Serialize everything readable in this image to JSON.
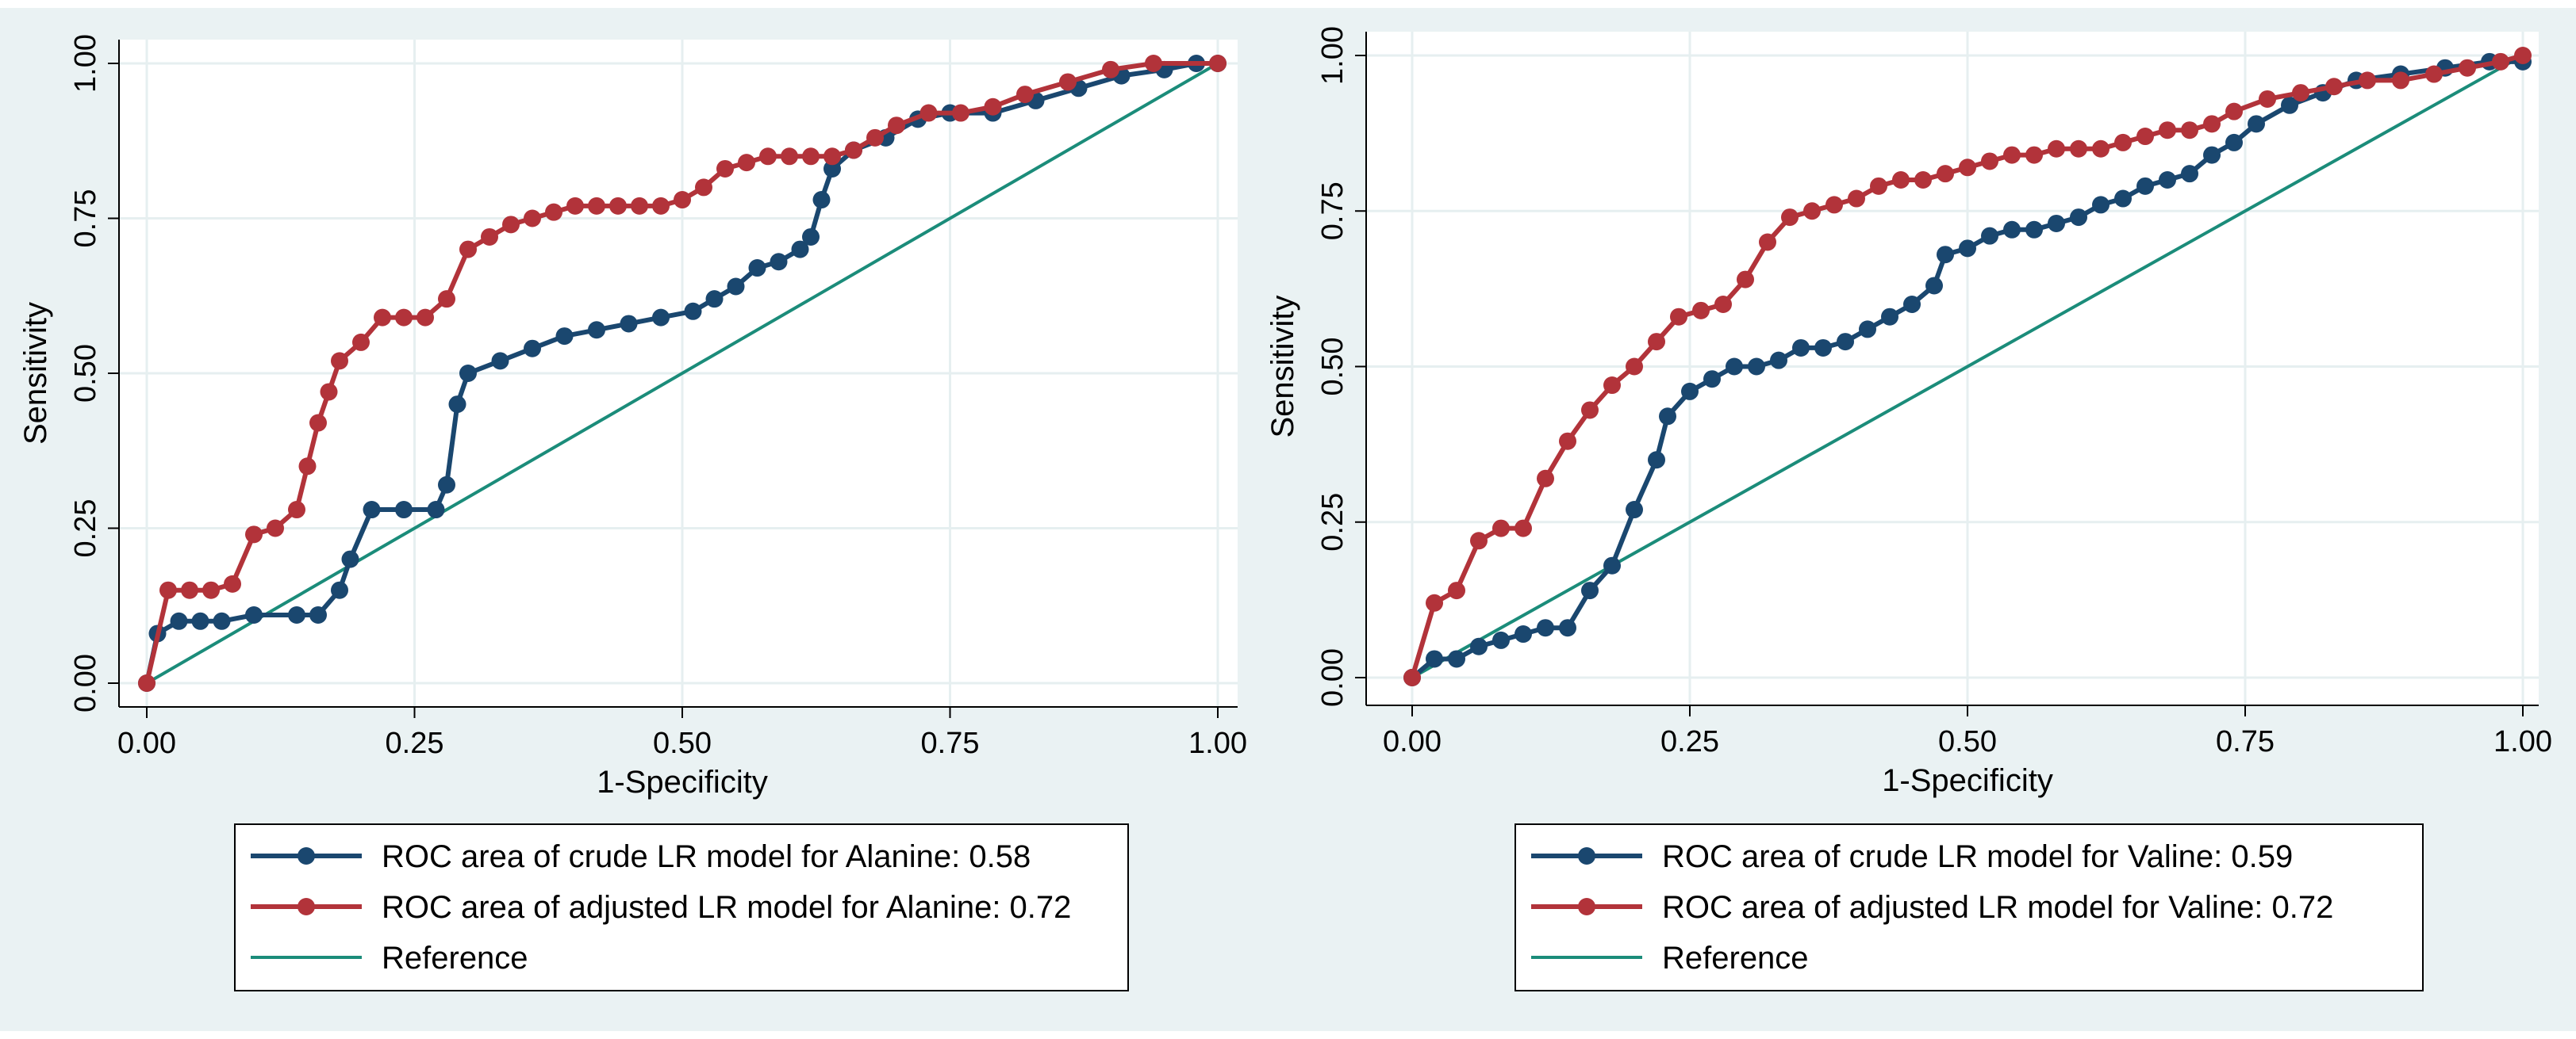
{
  "colors": {
    "panel_bg": "#eaf2f3",
    "plot_bg": "#ffffff",
    "grid": "#e6eff0",
    "crude": "#1a476f",
    "adjusted": "#b2333a",
    "reference": "#1b8c7a",
    "axis": "#000000"
  },
  "chart_data": [
    {
      "type": "line",
      "title": "",
      "xlabel": "1-Specificity",
      "ylabel": "Sensitivity",
      "xlim": [
        0,
        1
      ],
      "ylim": [
        0,
        1
      ],
      "xticks": [
        "0.00",
        "0.25",
        "0.50",
        "0.75",
        "1.00"
      ],
      "yticks": [
        "0.00",
        "0.25",
        "0.50",
        "0.75",
        "1.00"
      ],
      "grid": true,
      "legend_position": "bottom",
      "series": [
        {
          "name": "ROC area of crude LR model for Alanine: 0.58",
          "kind": "crude",
          "x": [
            0,
            0.01,
            0.03,
            0.05,
            0.07,
            0.1,
            0.14,
            0.16,
            0.18,
            0.19,
            0.21,
            0.24,
            0.27,
            0.28,
            0.29,
            0.3,
            0.33,
            0.36,
            0.39,
            0.42,
            0.45,
            0.48,
            0.51,
            0.53,
            0.55,
            0.57,
            0.59,
            0.61,
            0.62,
            0.63,
            0.64,
            0.66,
            0.69,
            0.72,
            0.75,
            0.79,
            0.83,
            0.87,
            0.91,
            0.95,
            0.98,
            1.0
          ],
          "y": [
            0,
            0.08,
            0.1,
            0.1,
            0.1,
            0.11,
            0.11,
            0.11,
            0.15,
            0.2,
            0.28,
            0.28,
            0.28,
            0.32,
            0.45,
            0.5,
            0.52,
            0.54,
            0.56,
            0.57,
            0.58,
            0.59,
            0.6,
            0.62,
            0.64,
            0.67,
            0.68,
            0.7,
            0.72,
            0.78,
            0.83,
            0.86,
            0.88,
            0.91,
            0.92,
            0.92,
            0.94,
            0.96,
            0.98,
            0.99,
            1.0,
            1.0
          ]
        },
        {
          "name": "ROC area of adjusted LR model for Alanine: 0.72",
          "kind": "adjusted",
          "x": [
            0,
            0.02,
            0.04,
            0.06,
            0.08,
            0.1,
            0.12,
            0.14,
            0.15,
            0.16,
            0.17,
            0.18,
            0.2,
            0.22,
            0.24,
            0.26,
            0.28,
            0.3,
            0.32,
            0.34,
            0.36,
            0.38,
            0.4,
            0.42,
            0.44,
            0.46,
            0.48,
            0.5,
            0.52,
            0.54,
            0.56,
            0.58,
            0.6,
            0.62,
            0.64,
            0.66,
            0.68,
            0.7,
            0.73,
            0.76,
            0.79,
            0.82,
            0.86,
            0.9,
            0.94,
            1.0
          ],
          "y": [
            0,
            0.15,
            0.15,
            0.15,
            0.16,
            0.24,
            0.25,
            0.28,
            0.35,
            0.42,
            0.47,
            0.52,
            0.55,
            0.59,
            0.59,
            0.59,
            0.62,
            0.7,
            0.72,
            0.74,
            0.75,
            0.76,
            0.77,
            0.77,
            0.77,
            0.77,
            0.77,
            0.78,
            0.8,
            0.83,
            0.84,
            0.85,
            0.85,
            0.85,
            0.85,
            0.86,
            0.88,
            0.9,
            0.92,
            0.92,
            0.93,
            0.95,
            0.97,
            0.99,
            1.0,
            1.0
          ]
        },
        {
          "name": "Reference",
          "kind": "reference",
          "x": [
            0,
            1
          ],
          "y": [
            0,
            1
          ]
        }
      ]
    },
    {
      "type": "line",
      "title": "",
      "xlabel": "1-Specificity",
      "ylabel": "Sensitivity",
      "xlim": [
        0,
        1
      ],
      "ylim": [
        0,
        1
      ],
      "xticks": [
        "0.00",
        "0.25",
        "0.50",
        "0.75",
        "1.00"
      ],
      "yticks": [
        "0.00",
        "0.25",
        "0.50",
        "0.75",
        "1.00"
      ],
      "grid": true,
      "legend_position": "bottom",
      "series": [
        {
          "name": "ROC area of crude LR model for Valine: 0.59",
          "kind": "crude",
          "x": [
            0,
            0.02,
            0.04,
            0.06,
            0.08,
            0.1,
            0.12,
            0.14,
            0.16,
            0.18,
            0.2,
            0.22,
            0.23,
            0.25,
            0.27,
            0.29,
            0.31,
            0.33,
            0.35,
            0.37,
            0.39,
            0.41,
            0.43,
            0.45,
            0.47,
            0.48,
            0.5,
            0.52,
            0.54,
            0.56,
            0.58,
            0.6,
            0.62,
            0.64,
            0.66,
            0.68,
            0.7,
            0.72,
            0.74,
            0.76,
            0.79,
            0.82,
            0.85,
            0.89,
            0.93,
            0.97,
            1.0
          ],
          "y": [
            0,
            0.03,
            0.03,
            0.05,
            0.06,
            0.07,
            0.08,
            0.08,
            0.14,
            0.18,
            0.27,
            0.35,
            0.42,
            0.46,
            0.48,
            0.5,
            0.5,
            0.51,
            0.53,
            0.53,
            0.54,
            0.56,
            0.58,
            0.6,
            0.63,
            0.68,
            0.69,
            0.71,
            0.72,
            0.72,
            0.73,
            0.74,
            0.76,
            0.77,
            0.79,
            0.8,
            0.81,
            0.84,
            0.86,
            0.89,
            0.92,
            0.94,
            0.96,
            0.97,
            0.98,
            0.99,
            0.99
          ]
        },
        {
          "name": "ROC area of adjusted LR model for Valine: 0.72",
          "kind": "adjusted",
          "x": [
            0,
            0.02,
            0.04,
            0.06,
            0.08,
            0.1,
            0.12,
            0.14,
            0.16,
            0.18,
            0.2,
            0.22,
            0.24,
            0.26,
            0.28,
            0.3,
            0.32,
            0.34,
            0.36,
            0.38,
            0.4,
            0.42,
            0.44,
            0.46,
            0.48,
            0.5,
            0.52,
            0.54,
            0.56,
            0.58,
            0.6,
            0.62,
            0.64,
            0.66,
            0.68,
            0.7,
            0.72,
            0.74,
            0.77,
            0.8,
            0.83,
            0.86,
            0.89,
            0.92,
            0.95,
            0.98,
            1.0
          ],
          "y": [
            0,
            0.12,
            0.14,
            0.22,
            0.24,
            0.24,
            0.32,
            0.38,
            0.43,
            0.47,
            0.5,
            0.54,
            0.58,
            0.59,
            0.6,
            0.64,
            0.7,
            0.74,
            0.75,
            0.76,
            0.77,
            0.79,
            0.8,
            0.8,
            0.81,
            0.82,
            0.83,
            0.84,
            0.84,
            0.85,
            0.85,
            0.85,
            0.86,
            0.87,
            0.88,
            0.88,
            0.89,
            0.91,
            0.93,
            0.94,
            0.95,
            0.96,
            0.96,
            0.97,
            0.98,
            0.99,
            1.0
          ]
        },
        {
          "name": "Reference",
          "kind": "reference",
          "x": [
            0,
            1
          ],
          "y": [
            0,
            1
          ]
        }
      ]
    }
  ]
}
